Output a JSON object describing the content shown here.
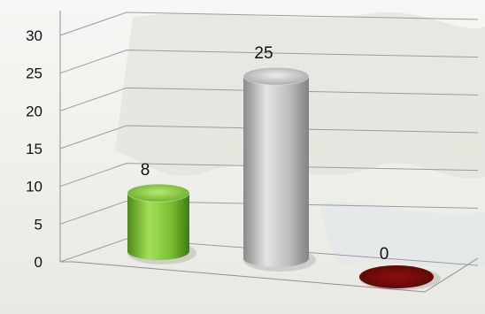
{
  "chart_data": {
    "type": "bar",
    "style": "3d-cylinder",
    "categories": [
      "",
      "",
      ""
    ],
    "values": [
      8,
      25,
      0
    ],
    "data_labels": [
      "8",
      "25",
      "0"
    ],
    "series": [
      {
        "values": [
          8,
          25,
          0
        ]
      }
    ],
    "ylim": [
      0,
      30
    ],
    "y_ticks": [
      "0",
      "5",
      "10",
      "15",
      "20",
      "25",
      "30"
    ],
    "grid": true,
    "legend": "none",
    "colors": [
      "#86c83b",
      "#b9b9b9",
      "#7a0c0c"
    ]
  }
}
